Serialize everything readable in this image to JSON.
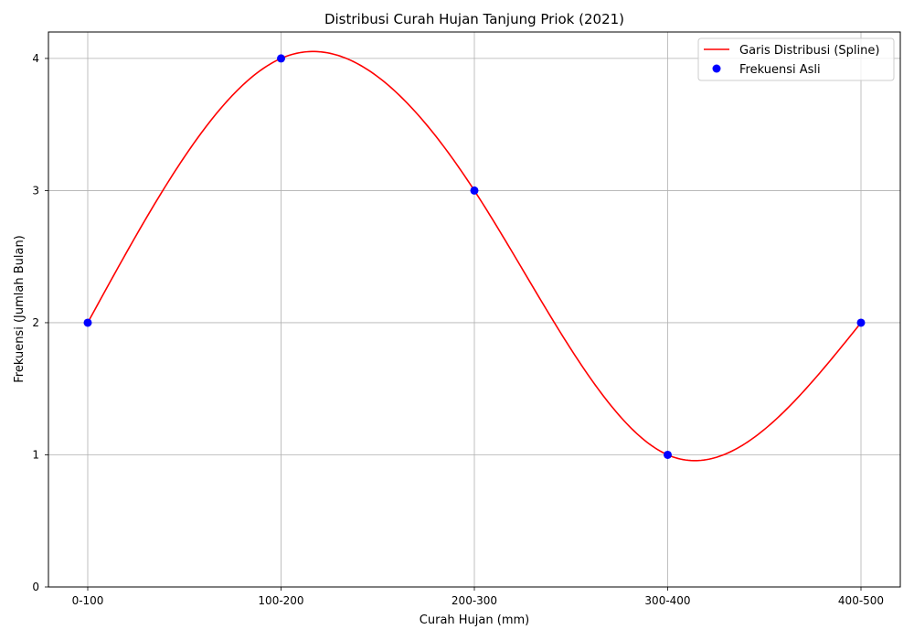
{
  "chart_data": {
    "type": "line",
    "title": "Distribusi Curah Hujan Tanjung Priok (2021)",
    "xlabel": "Curah Hujan (mm)",
    "ylabel": "Frekuensi (Jumlah Bulan)",
    "categories": [
      "0-100",
      "100-200",
      "200-300",
      "300-400",
      "400-500"
    ],
    "yticks": [
      "0",
      "1",
      "2",
      "3",
      "4"
    ],
    "ylim": [
      0,
      4.2
    ],
    "grid": true,
    "legend_position": "top-right",
    "series": [
      {
        "name": "Garis Distribusi (Spline)",
        "kind": "spline-line",
        "color": "#ff0000",
        "values": [
          2,
          4,
          3,
          1,
          2
        ]
      },
      {
        "name": "Frekuensi Asli",
        "kind": "markers",
        "color": "#0000ff",
        "values": [
          2,
          4,
          3,
          1,
          2
        ]
      }
    ]
  }
}
